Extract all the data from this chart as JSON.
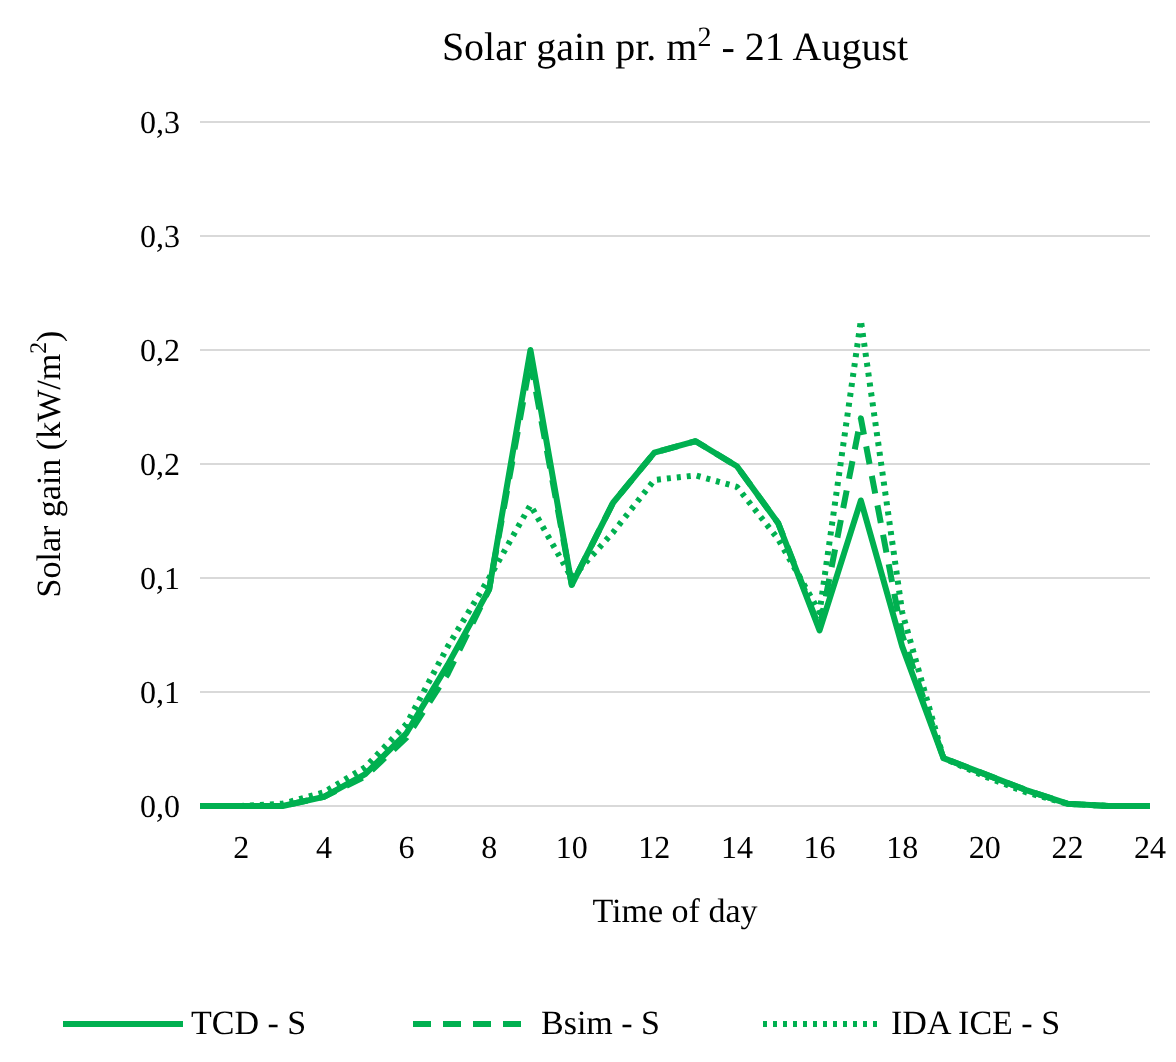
{
  "chart_data": {
    "type": "line",
    "title": "Solar gain pr. m$^{2}$ - 21 August",
    "xlabel": "Time of day",
    "ylabel": "Solar gain (kW/m$^{2}$)",
    "x": [
      1,
      2,
      3,
      4,
      5,
      6,
      7,
      8,
      9,
      10,
      11,
      12,
      13,
      14,
      15,
      16,
      17,
      18,
      19,
      20,
      21,
      22,
      23,
      24
    ],
    "series": [
      {
        "name": "TCD - S",
        "color": "#00b050",
        "line_style": "solid",
        "values": [
          0,
          0,
          0,
          0.004,
          0.014,
          0.032,
          0.062,
          0.095,
          0.2,
          0.097,
          0.133,
          0.155,
          0.16,
          0.149,
          0.124,
          0.077,
          0.134,
          0.07,
          0.021,
          0.014,
          0.007,
          0.001,
          0,
          0
        ]
      },
      {
        "name": "Bsim - S",
        "color": "#00b050",
        "line_style": "dashed",
        "values": [
          0,
          0,
          0,
          0.004,
          0.013,
          0.03,
          0.058,
          0.095,
          0.195,
          0.097,
          0.133,
          0.155,
          0.16,
          0.149,
          0.124,
          0.078,
          0.17,
          0.075,
          0.021,
          0.014,
          0.007,
          0.001,
          0,
          0
        ]
      },
      {
        "name": "IDA ICE - S",
        "color": "#00b050",
        "line_style": "dotted",
        "values": [
          0,
          0,
          0.001,
          0.006,
          0.017,
          0.036,
          0.07,
          0.1,
          0.132,
          0.1,
          0.12,
          0.143,
          0.145,
          0.14,
          0.117,
          0.085,
          0.213,
          0.085,
          0.021,
          0.013,
          0.006,
          0.001,
          0,
          0
        ]
      }
    ],
    "xlim": [
      1,
      24
    ],
    "xticks": [
      2,
      4,
      6,
      8,
      10,
      12,
      14,
      16,
      18,
      20,
      22,
      24
    ],
    "ylim": [
      0,
      0.3
    ],
    "yticks": [
      {
        "value": 0,
        "label": "0,0"
      },
      {
        "value": 0.05,
        "label": "0,1"
      },
      {
        "value": 0.1,
        "label": "0,1"
      },
      {
        "value": 0.15,
        "label": "0,2"
      },
      {
        "value": 0.2,
        "label": "0,2"
      },
      {
        "value": 0.25,
        "label": "0,3"
      },
      {
        "value": 0.3,
        "label": "0,3"
      }
    ],
    "grid": "y",
    "legend": "bottom"
  }
}
